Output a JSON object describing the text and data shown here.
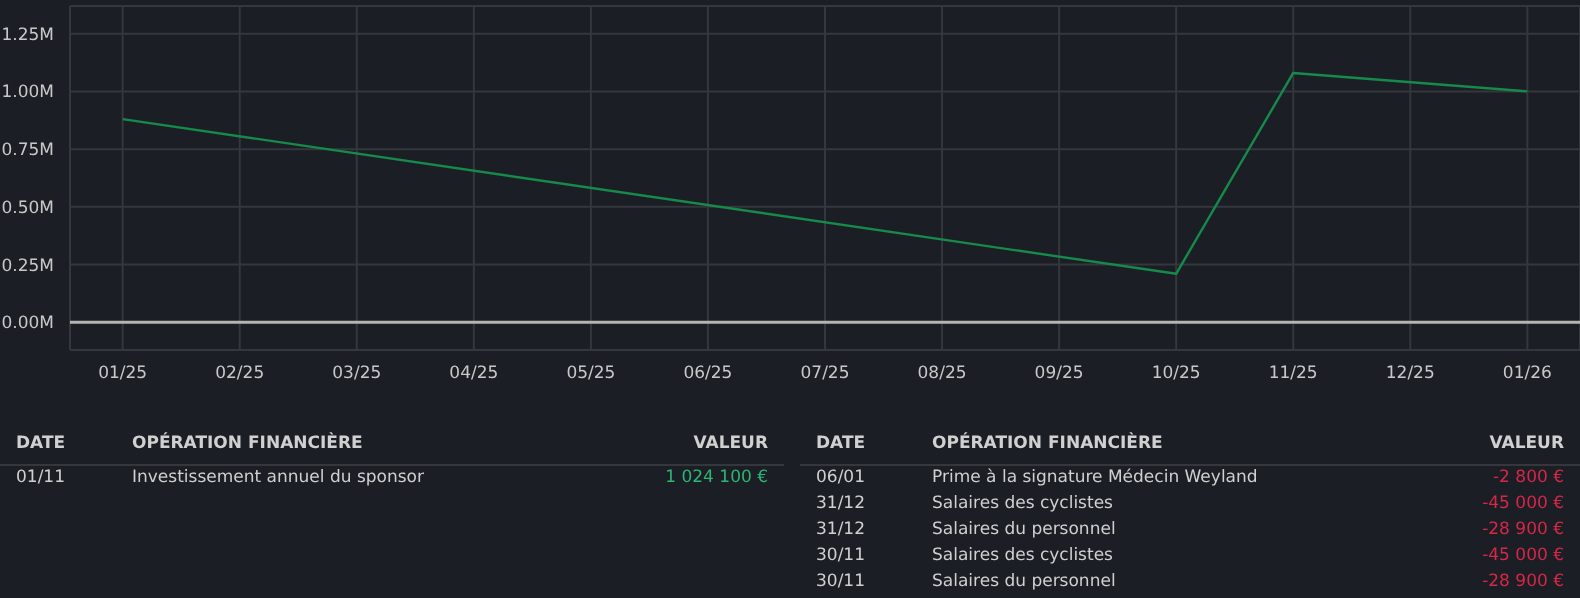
{
  "chart_data": {
    "type": "line",
    "categories": [
      "01/25",
      "02/25",
      "03/25",
      "04/25",
      "05/25",
      "06/25",
      "07/25",
      "08/25",
      "09/25",
      "10/25",
      "11/25",
      "12/25",
      "01/26"
    ],
    "series": [
      {
        "color": "#168a4a",
        "values": [
          0.88,
          null,
          null,
          null,
          null,
          null,
          null,
          null,
          null,
          0.21,
          1.08,
          null,
          1.0
        ]
      }
    ],
    "ylim": [
      -0.12,
      1.37
    ],
    "yticks": [
      {
        "value": 0,
        "label": "0.00M"
      },
      {
        "value": 0.25,
        "label": "0.25M"
      },
      {
        "value": 0.5,
        "label": "0.50M"
      },
      {
        "value": 0.75,
        "label": "0.75M"
      },
      {
        "value": 1,
        "label": "1.00M"
      },
      {
        "value": 1.25,
        "label": "1.25M"
      }
    ],
    "grid": true,
    "ref_lines": [
      {
        "axis": "y",
        "value": 0,
        "color": "#b4b4b4"
      }
    ],
    "annotations": [
      "DATE",
      "OPÉRATION FINANCIÈRE",
      "VALEUR",
      "01/11",
      "Investissement annuel du sponsor",
      "1 024 100 €",
      "DATE",
      "OPÉRATION FINANCIÈRE",
      "VALEUR",
      "06/01",
      "Prime à la signature Médecin Weyland",
      "-2 800 €",
      "31/12",
      "Salaires des cyclistes",
      "-45 000 €",
      "31/12",
      "Salaires du personnel",
      "-28 900 €",
      "30/11",
      "Salaires des cyclistes",
      "-45 000 €",
      "30/11",
      "Salaires du personnel",
      "-28 900 €"
    ]
  }
}
